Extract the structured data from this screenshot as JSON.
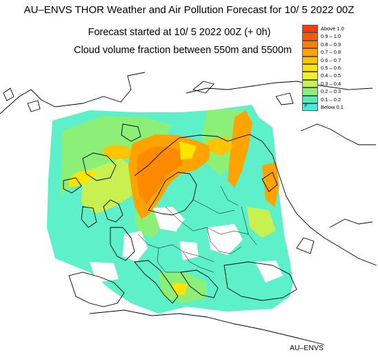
{
  "title": "AU–ENVS THOR Weather and Air Pollution Forecast for 10/ 5 2022  00Z",
  "subtitle1": "Forecast started at 10/ 5 2022  00Z (+ 0h)",
  "subtitle2": "Cloud volume fraction between 550m and 5500m",
  "footer": "AU–ENVS",
  "legend": [
    {
      "label": "Above   1.0",
      "color": "#ff3a00"
    },
    {
      "label": "0.9  –  1.0",
      "color": "#ff5a00"
    },
    {
      "label": "0.8  –  0.9",
      "color": "#ff7f00"
    },
    {
      "label": "0.7  –  0.8",
      "color": "#ffa300"
    },
    {
      "label": "0.6  –  0.7",
      "color": "#ffc400"
    },
    {
      "label": "0.5  –  0.6",
      "color": "#ffe400"
    },
    {
      "label": "0.4  –  0.5",
      "color": "#f0f028"
    },
    {
      "label": "0.3  –  0.4",
      "color": "#c8f050"
    },
    {
      "label": "0.2  –  0.3",
      "color": "#8cf078"
    },
    {
      "label": "0.1  –  0.2",
      "color": "#50f0b4"
    },
    {
      "label": "Below   0.1",
      "color": "#3cf0e6",
      "marker": "p"
    }
  ]
}
